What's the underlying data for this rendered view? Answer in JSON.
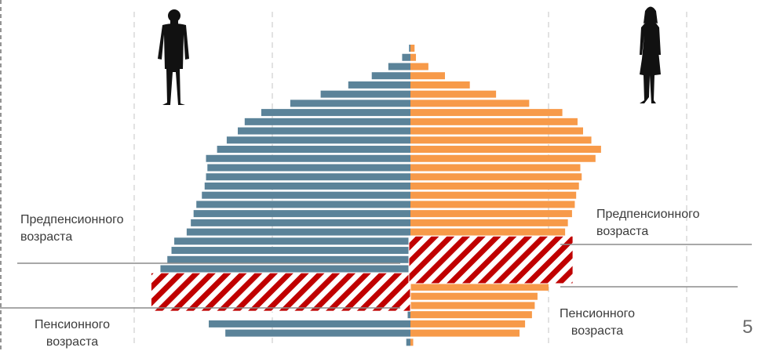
{
  "colors": {
    "male": "#5b8399",
    "female": "#f79a49",
    "hatch_red": "#c00000",
    "grid": "#d9d9d9",
    "divider": "#8c8c8c",
    "silhouette": "#111111"
  },
  "icons": [
    "man-silhouette-icon",
    "woman-silhouette-icon"
  ],
  "labels": {
    "pre_retirement_left": [
      "Предпенсионного",
      "возраста"
    ],
    "pre_retirement_right": [
      "Предпенсионного",
      "возраста"
    ],
    "retirement_left": [
      "Пенсионного",
      "возраста"
    ],
    "retirement_right": [
      "Пенсионного",
      "возраста"
    ]
  },
  "page_number": "5",
  "chart_data": {
    "type": "bar",
    "orientation": "horizontal",
    "style": "population-pyramid",
    "title": "",
    "xlabel": "",
    "ylabel": "",
    "grid": "vertical dashed",
    "legend": "none (silhouettes above each side)",
    "series": [
      {
        "side": "left",
        "values": [
          0.1,
          0.6,
          1.6,
          2.8,
          4.5,
          6.5,
          8.7,
          10.8,
          12.0,
          12.5,
          13.3,
          14.0,
          14.8,
          14.7,
          14.8,
          14.9,
          15.1,
          15.5,
          15.7,
          15.9,
          16.2,
          17.1,
          17.3,
          17.6,
          18.1,
          17.8,
          18.8,
          0.4,
          0.3,
          0.2,
          14.6,
          13.4,
          0.3
        ]
      },
      {
        "side": "right",
        "values": [
          0.3,
          0.4,
          1.3,
          2.5,
          4.3,
          6.2,
          8.6,
          11.0,
          12.1,
          12.5,
          13.1,
          13.8,
          13.4,
          12.3,
          12.4,
          12.2,
          12.0,
          11.9,
          11.7,
          11.4,
          11.2,
          0.5,
          0.4,
          0.3,
          0.2,
          0.1,
          10.0,
          9.2,
          9.0,
          8.8,
          8.3,
          7.9,
          0.2
        ]
      }
    ],
    "highlights": [
      {
        "side": "left",
        "group": "retirement",
        "rows": [
          25,
          28
        ]
      },
      {
        "side": "right",
        "group": "pre-retirement",
        "rows": [
          21,
          25
        ]
      }
    ],
    "xlim": [
      -20,
      20
    ]
  }
}
